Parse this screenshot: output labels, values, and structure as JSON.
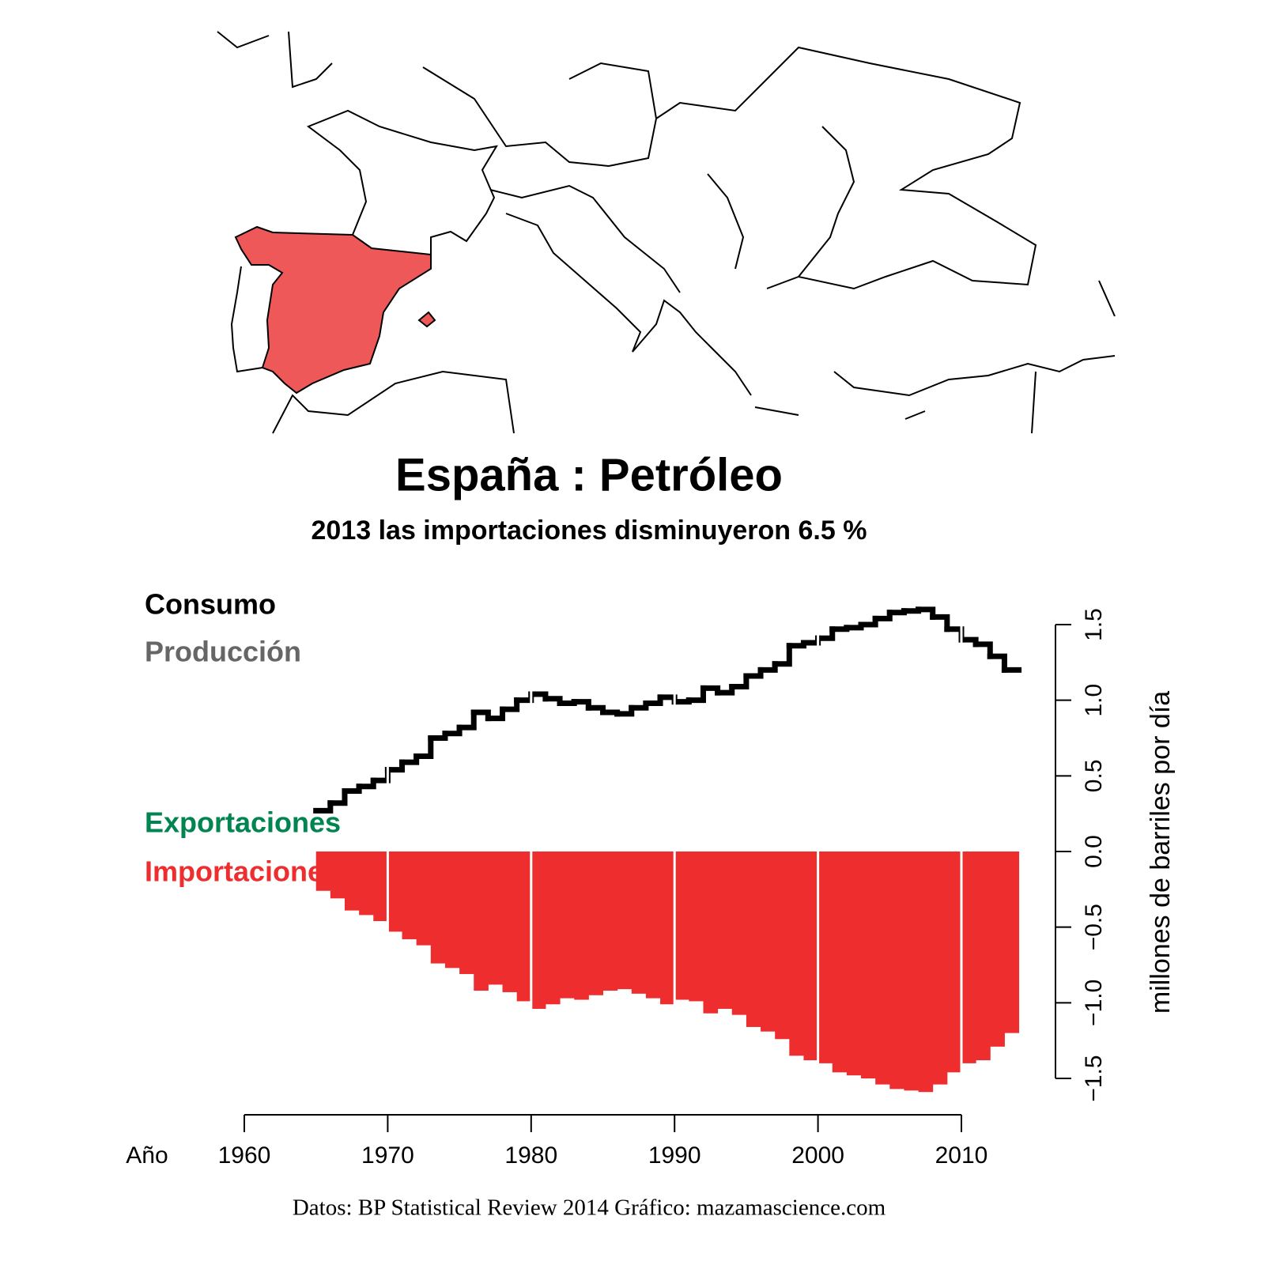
{
  "chart_data": {
    "type": "step-bar",
    "title": "España :  Petróleo",
    "subtitle": "2013 las importaciones disminuyeron 6.5 %",
    "x_label": "Año",
    "y_label": "millones de barriles por día",
    "source": "Datos: BP Statistical Review 2014   Gráfico: mazamascience.com",
    "x": [
      1965,
      1966,
      1967,
      1968,
      1969,
      1970,
      1971,
      1972,
      1973,
      1974,
      1975,
      1976,
      1977,
      1978,
      1979,
      1980,
      1981,
      1982,
      1983,
      1984,
      1985,
      1986,
      1987,
      1988,
      1989,
      1990,
      1991,
      1992,
      1993,
      1994,
      1995,
      1996,
      1997,
      1998,
      1999,
      2000,
      2001,
      2002,
      2003,
      2004,
      2005,
      2006,
      2007,
      2008,
      2009,
      2010,
      2011,
      2012,
      2013
    ],
    "series": [
      {
        "name": "Consumo",
        "color": "#000000",
        "values": [
          0.27,
          0.32,
          0.4,
          0.43,
          0.47,
          0.54,
          0.59,
          0.63,
          0.75,
          0.78,
          0.82,
          0.92,
          0.88,
          0.94,
          1.0,
          1.04,
          1.01,
          0.98,
          0.99,
          0.95,
          0.92,
          0.91,
          0.95,
          0.98,
          1.02,
          0.99,
          1.0,
          1.08,
          1.05,
          1.09,
          1.16,
          1.2,
          1.24,
          1.36,
          1.38,
          1.41,
          1.47,
          1.48,
          1.5,
          1.54,
          1.58,
          1.59,
          1.6,
          1.55,
          1.47,
          1.4,
          1.37,
          1.29,
          1.2
        ]
      },
      {
        "name": "Producción",
        "color": "#666666"
      },
      {
        "name": "Exportaciones",
        "color": "#008450"
      },
      {
        "name": "Importaciones",
        "color": "#ee2e2e",
        "values": [
          -0.26,
          -0.31,
          -0.39,
          -0.42,
          -0.46,
          -0.53,
          -0.58,
          -0.62,
          -0.74,
          -0.77,
          -0.81,
          -0.92,
          -0.88,
          -0.93,
          -0.99,
          -1.04,
          -1.01,
          -0.97,
          -0.98,
          -0.95,
          -0.92,
          -0.91,
          -0.94,
          -0.97,
          -1.01,
          -0.98,
          -0.99,
          -1.07,
          -1.04,
          -1.08,
          -1.16,
          -1.19,
          -1.24,
          -1.35,
          -1.38,
          -1.4,
          -1.46,
          -1.48,
          -1.5,
          -1.54,
          -1.57,
          -1.58,
          -1.59,
          -1.54,
          -1.46,
          -1.4,
          -1.38,
          -1.29,
          -1.2
        ]
      }
    ],
    "xlim": [
      1960,
      2010
    ],
    "xticks": [
      1960,
      1970,
      1980,
      1990,
      2000,
      2010
    ],
    "ylim": [
      -1.5,
      1.5
    ],
    "yticks": [
      {
        "value": -1.5,
        "label": "−1.5"
      },
      {
        "value": -1.0,
        "label": "−1.0"
      },
      {
        "value": -0.5,
        "label": "−0.5"
      },
      {
        "value": 0,
        "label": "0.0"
      },
      {
        "value": 1.0,
        "label": "1.0"
      },
      0.5,
      1.5
    ],
    "grid": true,
    "grid_color": "#ffffff"
  }
}
